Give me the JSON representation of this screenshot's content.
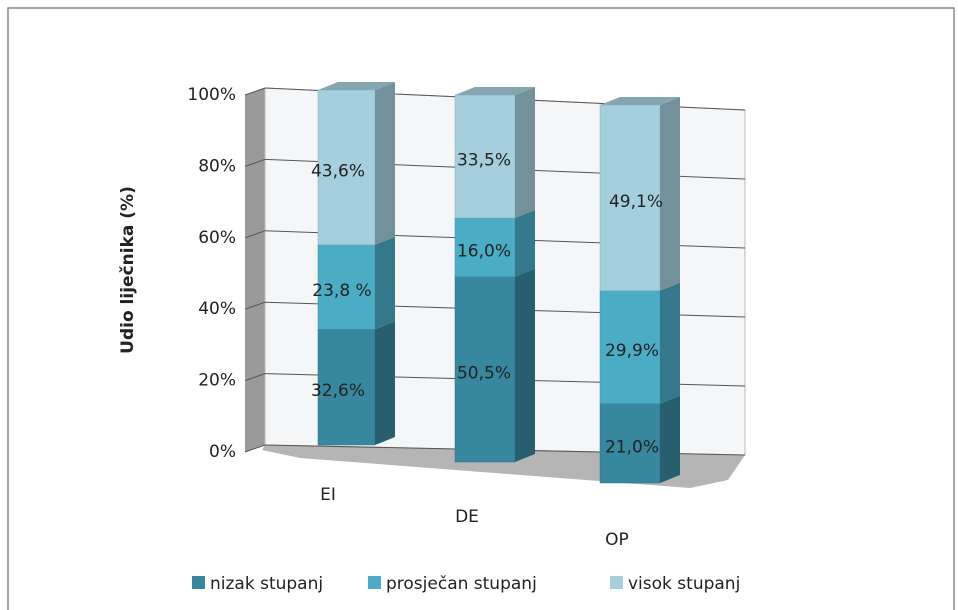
{
  "chart_data": {
    "type": "bar3d_stacked",
    "ylabel": "Udio liječnika (%)",
    "categories": [
      "EI",
      "DE",
      "OP"
    ],
    "series": [
      {
        "name": "nizak stupanj",
        "color": "#37879f",
        "values": [
          32.6,
          50.5,
          21.0
        ],
        "value_labels": [
          "32,6%",
          "50,5%",
          "21,0%"
        ]
      },
      {
        "name": "prosječan stupanj",
        "color": "#4bacc6",
        "values": [
          23.8,
          16.0,
          29.9
        ],
        "value_labels": [
          "23,8 %",
          "16,0%",
          "29,9%"
        ]
      },
      {
        "name": "visok stupanj",
        "color": "#a5cfdd",
        "values": [
          43.6,
          33.5,
          49.1
        ],
        "value_labels": [
          "43,6%",
          "33,5%",
          "49,1%"
        ]
      }
    ],
    "ylim": [
      0,
      100
    ],
    "yticks": [
      {
        "value": 0,
        "label": "0%"
      },
      {
        "value": 20,
        "label": "20%"
      },
      {
        "value": 40,
        "label": "40%"
      },
      {
        "value": 60,
        "label": "60%"
      },
      {
        "value": 80,
        "label": "80%"
      },
      {
        "value": 100,
        "label": "100%"
      }
    ],
    "grid": true
  }
}
